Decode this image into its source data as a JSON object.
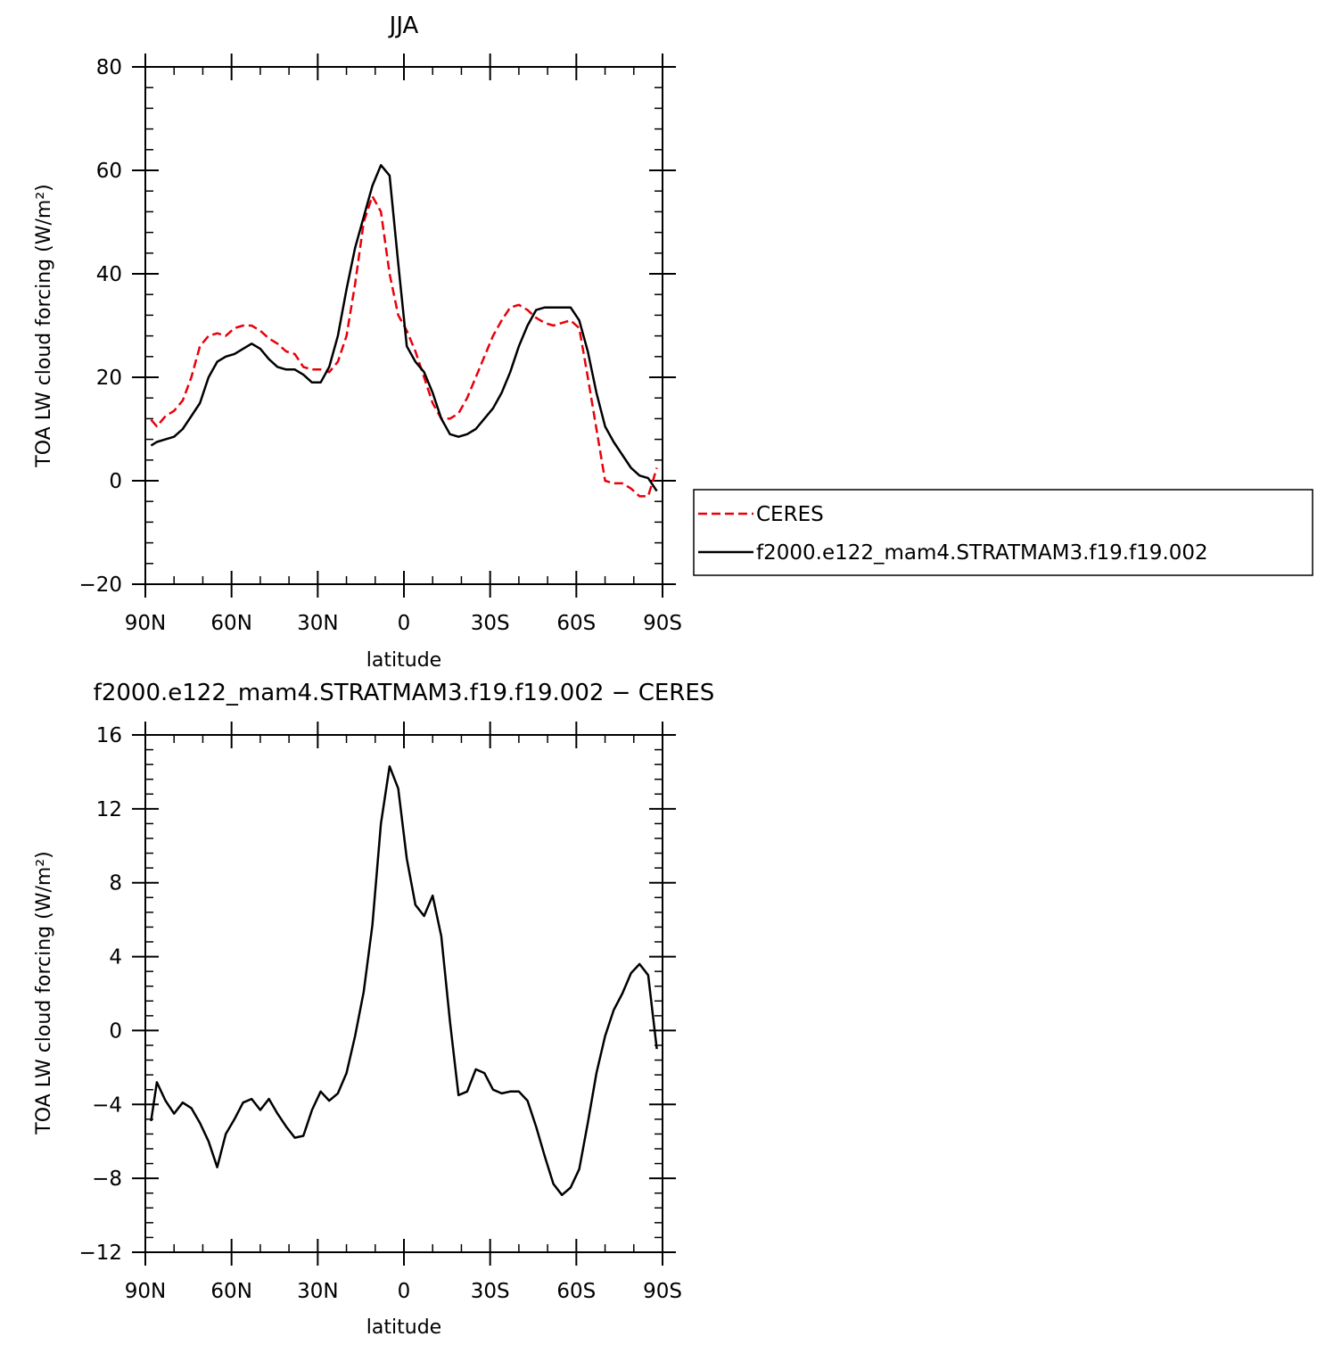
{
  "chart_data": [
    {
      "type": "line",
      "title": "JJA",
      "xlabel": "latitude",
      "ylabel": "TOA LW cloud forcing (W/m²)",
      "xlim": [
        90,
        -90
      ],
      "ylim": [
        -20,
        80
      ],
      "xticks": [
        90,
        60,
        30,
        0,
        -30,
        -60,
        -90
      ],
      "xtick_labels": [
        "90N",
        "60N",
        "30N",
        "0",
        "30S",
        "60S",
        "90S"
      ],
      "yticks": [
        -20,
        0,
        20,
        40,
        60,
        80
      ],
      "ytick_labels": [
        "−20",
        "0",
        "20",
        "40",
        "60",
        "80"
      ],
      "legend": "right",
      "series": [
        {
          "name": "CERES",
          "color": "#e8000b",
          "style": "dashed",
          "x": [
            88,
            86,
            83,
            80,
            77,
            74,
            71,
            68,
            65,
            62,
            59,
            56,
            53,
            50,
            47,
            44,
            41,
            38,
            35,
            32,
            29,
            26,
            23,
            20,
            17,
            14,
            11,
            8,
            5,
            2,
            -1,
            -4,
            -7,
            -10,
            -13,
            -16,
            -19,
            -22,
            -25,
            -28,
            -31,
            -34,
            -37,
            -40,
            -43,
            -46,
            -49,
            -52,
            -55,
            -58,
            -61,
            -64,
            -67,
            -70,
            -73,
            -76,
            -79,
            -82,
            -85,
            -88
          ],
          "y": [
            11.8,
            10.5,
            12.5,
            13.5,
            15.5,
            20,
            26,
            28,
            28.5,
            28,
            29.5,
            30,
            30,
            29,
            27.5,
            26.5,
            25,
            24.5,
            22,
            21.5,
            21.5,
            21,
            23,
            28,
            38,
            50,
            55,
            52,
            40,
            32,
            29,
            25,
            20,
            15,
            12,
            12,
            13,
            16,
            20,
            24,
            28,
            31,
            33.5,
            34,
            33,
            31.5,
            30.5,
            30,
            30.5,
            31,
            29.5,
            20,
            10,
            0,
            -0.5,
            -0.5,
            -1.5,
            -3,
            -3,
            2.5
          ]
        },
        {
          "name": "f2000.e122_mam4.STRATMAM3.f19.f19.002",
          "color": "#000000",
          "style": "solid",
          "x": [
            88,
            86,
            83,
            80,
            77,
            74,
            71,
            68,
            65,
            62,
            59,
            56,
            53,
            50,
            47,
            44,
            41,
            38,
            35,
            32,
            29,
            26,
            23,
            20,
            17,
            14,
            11,
            8,
            5,
            2,
            -1,
            -4,
            -7,
            -10,
            -13,
            -16,
            -19,
            -22,
            -25,
            -28,
            -31,
            -34,
            -37,
            -40,
            -43,
            -46,
            -49,
            -52,
            -55,
            -58,
            -61,
            -64,
            -67,
            -70,
            -73,
            -76,
            -79,
            -82,
            -85,
            -88
          ],
          "y": [
            6.8,
            7.5,
            8,
            8.5,
            10,
            12.5,
            15,
            20,
            23,
            24,
            24.5,
            25.5,
            26.5,
            25.5,
            23.5,
            22,
            21.5,
            21.5,
            20.5,
            19,
            19,
            22,
            28,
            37,
            45,
            51,
            57,
            61,
            59,
            42,
            26,
            23,
            21,
            17,
            12,
            9,
            8.5,
            9,
            10,
            12,
            14,
            17,
            21,
            26,
            30,
            33,
            33.5,
            33.5,
            33.5,
            33.5,
            31,
            25,
            17,
            10.5,
            7.5,
            5,
            2.5,
            1,
            0.5,
            -2
          ]
        }
      ]
    },
    {
      "type": "line",
      "title": "f2000.e122_mam4.STRATMAM3.f19.f19.002 − CERES",
      "xlabel": "latitude",
      "ylabel": "TOA LW cloud forcing (W/m²)",
      "xlim": [
        90,
        -90
      ],
      "ylim": [
        -12,
        16
      ],
      "xticks": [
        90,
        60,
        30,
        0,
        -30,
        -60,
        -90
      ],
      "xtick_labels": [
        "90N",
        "60N",
        "30N",
        "0",
        "30S",
        "60S",
        "90S"
      ],
      "yticks": [
        -12,
        -8,
        -4,
        0,
        4,
        8,
        12,
        16
      ],
      "ytick_labels": [
        "−12",
        "−8",
        "−4",
        "0",
        "4",
        "8",
        "12",
        "16"
      ],
      "series": [
        {
          "color": "#000000",
          "style": "solid",
          "x": [
            88,
            86,
            83,
            80,
            77,
            74,
            71,
            68,
            65,
            62,
            59,
            56,
            53,
            50,
            47,
            44,
            41,
            38,
            35,
            32,
            29,
            26,
            23,
            20,
            17,
            14,
            11,
            8,
            5,
            2,
            -1,
            -4,
            -7,
            -10,
            -13,
            -16,
            -19,
            -22,
            -25,
            -28,
            -31,
            -34,
            -37,
            -40,
            -43,
            -46,
            -49,
            -52,
            -55,
            -58,
            -61,
            -64,
            -67,
            -70,
            -73,
            -76,
            -79,
            -82,
            -85,
            -88
          ],
          "y": [
            -4.9,
            -2.8,
            -3.8,
            -4.5,
            -3.9,
            -4.2,
            -5.0,
            -6.0,
            -7.4,
            -5.6,
            -4.8,
            -3.9,
            -3.7,
            -4.3,
            -3.7,
            -4.5,
            -5.2,
            -5.8,
            -5.7,
            -4.3,
            -3.3,
            -3.8,
            -3.4,
            -2.3,
            -0.3,
            2.1,
            5.7,
            11.2,
            14.3,
            13.1,
            9.3,
            6.8,
            6.2,
            7.3,
            5.1,
            0.5,
            -3.5,
            -3.3,
            -2.1,
            -2.3,
            -3.2,
            -3.4,
            -3.3,
            -3.3,
            -3.8,
            -5.2,
            -6.8,
            -8.3,
            -8.9,
            -8.5,
            -7.5,
            -5.0,
            -2.3,
            -0.3,
            1.1,
            2.0,
            3.1,
            3.6,
            3.0,
            -1.0
          ]
        }
      ]
    }
  ]
}
